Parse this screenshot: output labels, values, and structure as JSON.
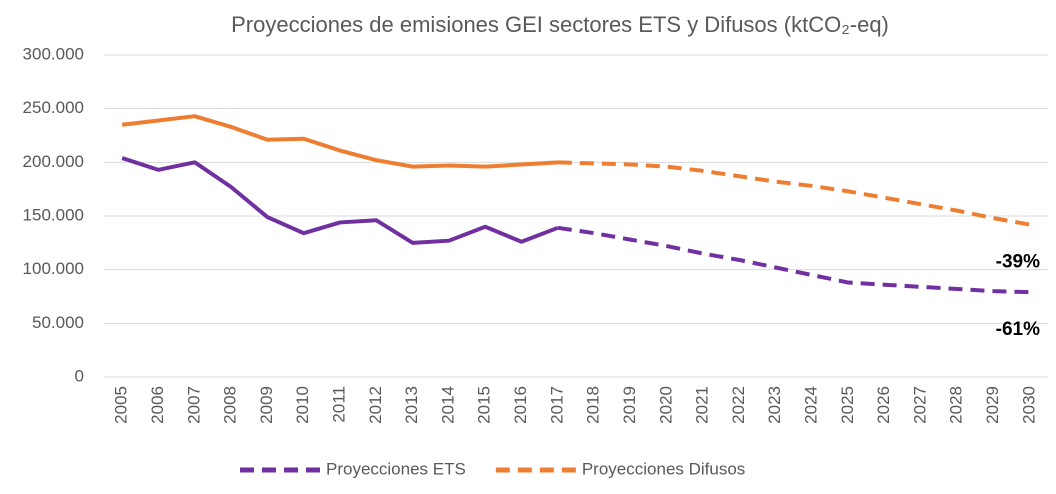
{
  "chart_data": {
    "type": "line",
    "title": "Proyecciones de emisiones GEI sectores ETS y Difusos (ktCO₂-eq)",
    "categories": [
      "2005",
      "2006",
      "2007",
      "2008",
      "2009",
      "2010",
      "2011",
      "2012",
      "2013",
      "2014",
      "2015",
      "2016",
      "2017",
      "2018",
      "2019",
      "2020",
      "2021",
      "2022",
      "2023",
      "2024",
      "2025",
      "2026",
      "2027",
      "2028",
      "2029",
      "2030"
    ],
    "dash_from": "2017",
    "series": [
      {
        "name": "Proyecciones ETS",
        "color": "#7030a0",
        "annotation": "-61%",
        "values": [
          204000,
          193000,
          200000,
          177000,
          149000,
          134000,
          144000,
          146000,
          125000,
          127000,
          140000,
          126000,
          139000,
          134000,
          128000,
          122000,
          115000,
          109000,
          102000,
          95000,
          88000,
          86000,
          84000,
          82000,
          80000,
          79000
        ]
      },
      {
        "name": "Proyecciones Difusos",
        "color": "#ed7d31",
        "annotation": "-39%",
        "values": [
          235000,
          239000,
          243000,
          233000,
          221000,
          222000,
          211000,
          202000,
          196000,
          197000,
          196000,
          198000,
          200000,
          199000,
          198000,
          196000,
          192000,
          187000,
          182000,
          178000,
          173000,
          167000,
          161000,
          155000,
          148000,
          142000
        ]
      }
    ],
    "ylim": [
      0,
      300000
    ],
    "yticks": [
      0,
      {
        "value": 50000,
        "label": "50.000"
      },
      {
        "value": 100000,
        "label": "100.000"
      },
      {
        "value": 150000,
        "label": "150.000"
      },
      {
        "value": 200000,
        "label": "200.000"
      },
      {
        "value": 250000,
        "label": "250.000"
      },
      {
        "value": 300000,
        "label": "300.000"
      }
    ],
    "grid": true,
    "legend": "bottom"
  }
}
